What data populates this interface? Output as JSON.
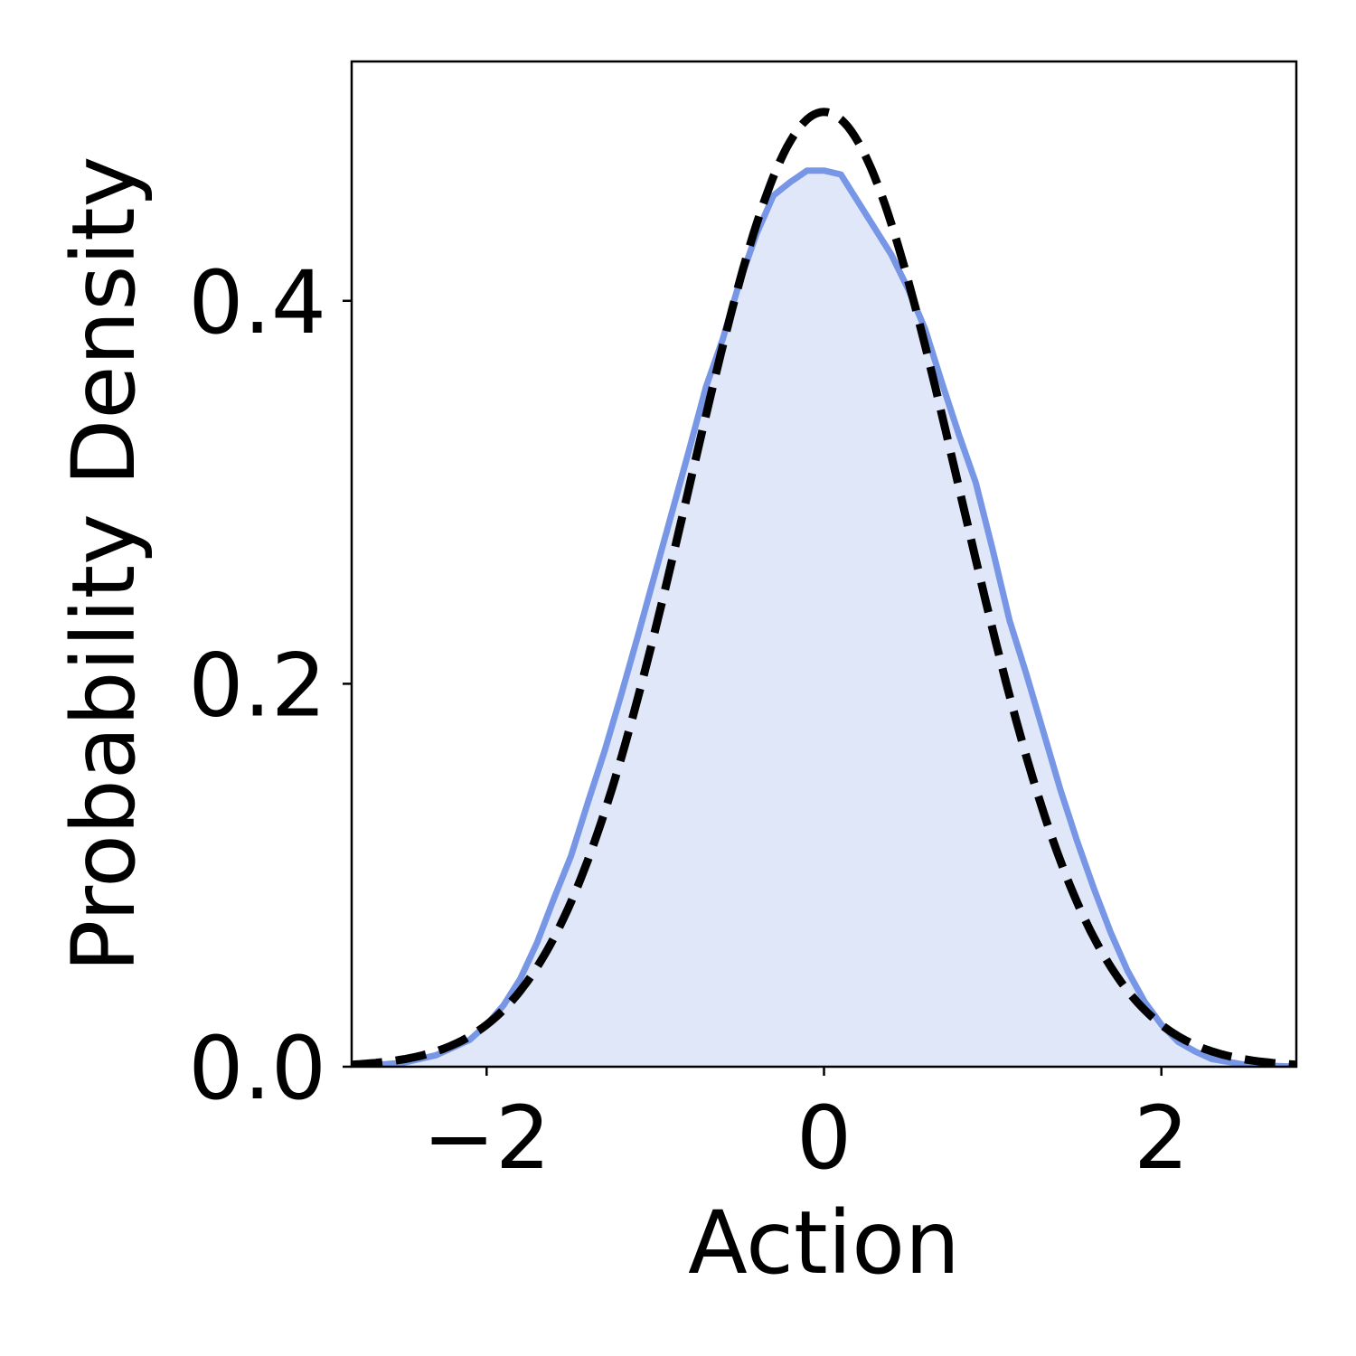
{
  "chart_data": {
    "type": "area",
    "title": "",
    "xlabel": "Action",
    "ylabel": "Probability Density",
    "xlim": [
      -2.8,
      2.8
    ],
    "ylim": [
      0.0,
      0.525
    ],
    "grid": false,
    "legend": "none",
    "xticks": [
      {
        "value": -2,
        "label": "−2"
      },
      {
        "value": 0,
        "label": "0"
      },
      {
        "value": 2,
        "label": "2"
      }
    ],
    "yticks": [
      {
        "value": 0.0,
        "label": "0.0"
      },
      {
        "value": 0.2,
        "label": "0.2"
      },
      {
        "value": 0.4,
        "label": "0.4"
      }
    ],
    "series": [
      {
        "style": "solid-line-with-fill",
        "color": "#7896e6",
        "fill": "#dfe7f8",
        "x": [
          -2.8,
          -2.5,
          -2.3,
          -2.1,
          -2.0,
          -1.9,
          -1.8,
          -1.7,
          -1.6,
          -1.5,
          -1.4,
          -1.3,
          -1.2,
          -1.1,
          -1.0,
          -0.9,
          -0.8,
          -0.7,
          -0.6,
          -0.5,
          -0.4,
          -0.3,
          -0.2,
          -0.1,
          0.0,
          0.1,
          0.2,
          0.3,
          0.4,
          0.5,
          0.6,
          0.7,
          0.8,
          0.9,
          1.0,
          1.1,
          1.2,
          1.3,
          1.4,
          1.5,
          1.6,
          1.7,
          1.8,
          1.9,
          2.0,
          2.1,
          2.2,
          2.3,
          2.5,
          2.8
        ],
        "y": [
          0.0,
          0.002,
          0.006,
          0.014,
          0.022,
          0.032,
          0.046,
          0.065,
          0.088,
          0.11,
          0.138,
          0.165,
          0.195,
          0.226,
          0.258,
          0.29,
          0.322,
          0.355,
          0.38,
          0.41,
          0.435,
          0.455,
          0.462,
          0.468,
          0.468,
          0.466,
          0.452,
          0.438,
          0.424,
          0.406,
          0.385,
          0.357,
          0.33,
          0.305,
          0.27,
          0.233,
          0.205,
          0.175,
          0.145,
          0.118,
          0.093,
          0.07,
          0.05,
          0.034,
          0.022,
          0.013,
          0.008,
          0.004,
          0.001,
          0.0
        ]
      },
      {
        "style": "dashed-line",
        "color": "#000000",
        "distribution": "normal",
        "mean": 0.0,
        "std": 0.8
      }
    ]
  }
}
